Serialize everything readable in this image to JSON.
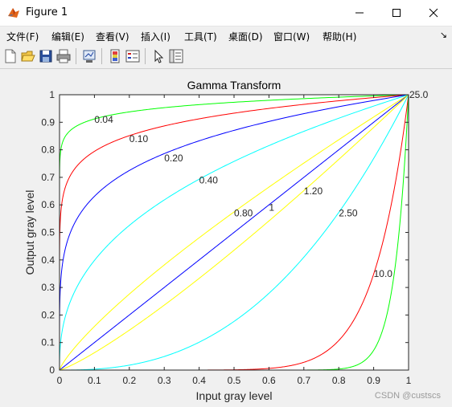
{
  "window": {
    "title": "Figure 1",
    "icon": "matlab-figure-icon"
  },
  "menu": {
    "items": [
      "文件(F)",
      "编辑(E)",
      "查看(V)",
      "插入(I)",
      "工具(T)",
      "桌面(D)",
      "窗口(W)",
      "帮助(H)"
    ],
    "overflow_icon": "chevron-right-icon"
  },
  "toolbar": {
    "icons": [
      "new-figure-icon",
      "open-file-icon",
      "save-icon",
      "print-icon",
      "link-plot-icon",
      "insert-colorbar-icon",
      "insert-legend-icon",
      "pointer-icon",
      "property-inspector-icon"
    ]
  },
  "watermark": "CSDN @custscs",
  "chart_data": {
    "type": "line",
    "title": "Gamma Transform",
    "xlabel": "Input gray level",
    "ylabel": "Output gray level",
    "xlim": [
      0,
      1
    ],
    "ylim": [
      0,
      1
    ],
    "xticks": [
      "0",
      "0.1",
      "0.2",
      "0.3",
      "0.4",
      "0.5",
      "0.6",
      "0.7",
      "0.8",
      "0.9",
      "1"
    ],
    "yticks": [
      "0",
      "0.1",
      "0.2",
      "0.3",
      "0.4",
      "0.5",
      "0.6",
      "0.7",
      "0.8",
      "0.9",
      "1"
    ],
    "grid": false,
    "formula": "y = x^gamma",
    "series": [
      {
        "gamma": 0.04,
        "color": "#00ff00",
        "label": "0.04",
        "label_at": [
          0.1,
          0.91
        ]
      },
      {
        "gamma": 0.1,
        "color": "#ff0000",
        "label": "0.10",
        "label_at": [
          0.2,
          0.84
        ]
      },
      {
        "gamma": 0.2,
        "color": "#0000ff",
        "label": "0.20",
        "label_at": [
          0.3,
          0.77
        ]
      },
      {
        "gamma": 0.4,
        "color": "#00ffff",
        "label": "0.40",
        "label_at": [
          0.4,
          0.69
        ]
      },
      {
        "gamma": 0.8,
        "color": "#ffff00",
        "label": "0.80",
        "label_at": [
          0.5,
          0.57
        ]
      },
      {
        "gamma": 1.0,
        "color": "#0000ff",
        "label": "1",
        "label_at": [
          0.6,
          0.59
        ]
      },
      {
        "gamma": 1.2,
        "color": "#ffff00",
        "label": "1.20",
        "label_at": [
          0.7,
          0.65
        ]
      },
      {
        "gamma": 2.5,
        "color": "#00ffff",
        "label": "2.50",
        "label_at": [
          0.8,
          0.57
        ]
      },
      {
        "gamma": 10.0,
        "color": "#ff0000",
        "label": "10.0",
        "label_at": [
          0.9,
          0.35
        ]
      },
      {
        "gamma": 25.0,
        "color": "#00ff00",
        "label": "25.0",
        "label_at": [
          1.0,
          1.0
        ]
      }
    ]
  }
}
